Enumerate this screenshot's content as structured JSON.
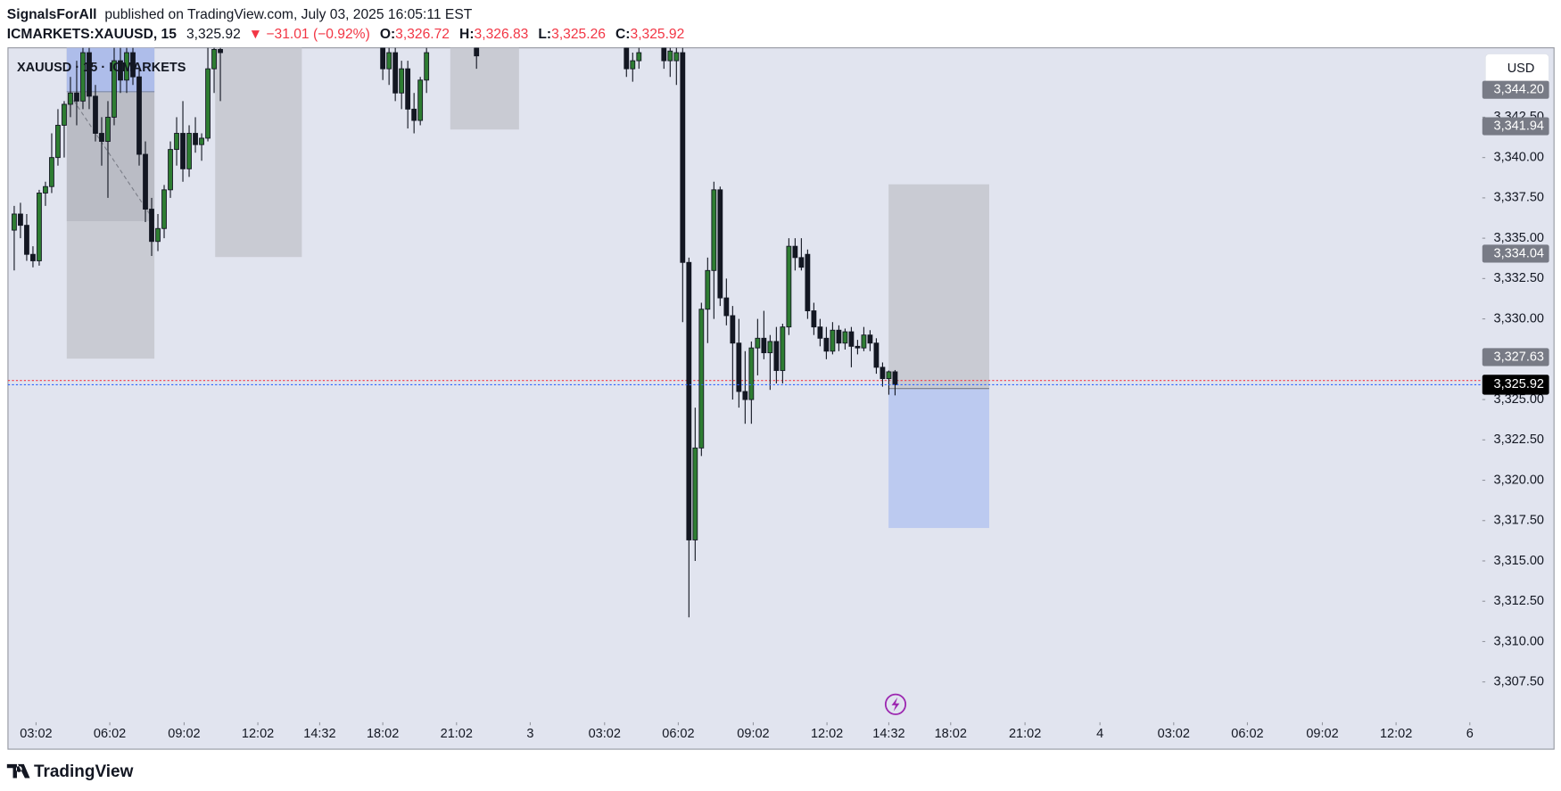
{
  "header": {
    "author": "SignalsForAll",
    "published": "published on TradingView.com, July 03, 2025 16:05:11 EST",
    "symbol": "ICMARKETS:XAUUSD, 15",
    "price": "3,325.92",
    "change": "▼ −31.01 (−0.92%)",
    "ohlc": [
      {
        "label": "O:",
        "value": "3,326.72"
      },
      {
        "label": "H:",
        "value": "3,326.83"
      },
      {
        "label": "L:",
        "value": "3,325.26"
      },
      {
        "label": "C:",
        "value": "3,325.92"
      }
    ]
  },
  "chart_data": {
    "type": "candlestick",
    "legend": "XAUUSD · 15 · ICMARKETS",
    "currency": "USD",
    "up_color": "#2e7d32",
    "down_color": "#131722",
    "grid": false,
    "x": [
      1,
      2,
      3,
      4,
      5,
      6,
      7,
      8,
      9,
      10,
      11,
      12,
      13,
      14,
      15,
      16,
      17,
      18,
      19,
      20,
      21,
      22,
      23,
      24,
      25,
      26,
      27,
      28,
      29,
      30,
      31,
      32,
      33,
      34,
      60,
      61,
      62,
      63,
      64,
      65,
      66,
      67,
      75,
      99,
      100,
      101,
      105,
      106,
      107,
      108,
      109,
      110,
      111,
      112,
      113,
      114,
      115,
      116,
      117,
      118,
      119,
      120,
      121,
      122,
      123,
      124,
      125,
      126,
      127,
      128,
      129,
      130,
      131,
      132,
      133,
      134,
      135,
      136,
      137,
      138,
      139,
      140,
      141,
      142
    ],
    "open": [
      3335.5,
      3336.5,
      3335.8,
      3334,
      3333.6,
      3337.8,
      3338.2,
      3340,
      3342,
      3343.3,
      3344,
      3343.5,
      3346.5,
      3343.8,
      3341.5,
      3341,
      3342.5,
      3346,
      3344.8,
      3346.5,
      3345,
      3340.2,
      3336.8,
      3334.8,
      3335.6,
      3338,
      3340.5,
      3341.5,
      3339.3,
      3341.5,
      3340.8,
      3341.2,
      3345.5,
      3346.7,
      3346.8,
      3345.5,
      3346.5,
      3344,
      3345.5,
      3343,
      3342.3,
      3344.8,
      3346.8,
      3346.8,
      3345.5,
      3346,
      3346.8,
      3346,
      3346,
      3346.5,
      3333.5,
      3316.3,
      3322,
      3330.6,
      3333,
      3338,
      3331.3,
      3330.2,
      3328.5,
      3325.5,
      3325,
      3328.2,
      3328.8,
      3327.9,
      3328.6,
      3326.8,
      3329.5,
      3334.5,
      3333.8,
      3334,
      3330.5,
      3329.5,
      3328.8,
      3328,
      3329.3,
      3328.5,
      3329.2,
      3328.3,
      3328.2,
      3329,
      3328.5,
      3327,
      3326.3,
      3326.72
    ],
    "high": [
      3337,
      3337.2,
      3336.5,
      3334.5,
      3338,
      3338.5,
      3341.5,
      3343,
      3343.5,
      3345,
      3346,
      3346.8,
      3346.8,
      3344.5,
      3342.5,
      3343.5,
      3346.8,
      3346.8,
      3346.8,
      3346.8,
      3345.5,
      3341,
      3337.5,
      3336.5,
      3338.3,
      3341,
      3342.5,
      3343.5,
      3342,
      3342.5,
      3341.5,
      3346.8,
      3346.8,
      3346.8,
      3346.8,
      3346.8,
      3346.8,
      3346,
      3346,
      3344,
      3345,
      3346.8,
      3346.8,
      3346.8,
      3346.5,
      3346.8,
      3346.8,
      3346.8,
      3346.8,
      3346.8,
      3333.8,
      3324.5,
      3331,
      3333.8,
      3338.5,
      3338.2,
      3332.5,
      3330.8,
      3330,
      3328,
      3328.6,
      3330,
      3330.5,
      3329,
      3329.5,
      3329.7,
      3335,
      3335,
      3335,
      3334.3,
      3331,
      3330,
      3329.5,
      3329.8,
      3329.6,
      3329.4,
      3329.5,
      3328.7,
      3329.5,
      3329.3,
      3328.8,
      3327.3,
      3326.8,
      3326.83
    ],
    "low": [
      3333,
      3335,
      3333.6,
      3333.2,
      3333.3,
      3337,
      3337.8,
      3339.5,
      3340,
      3342.5,
      3342,
      3343,
      3343,
      3341,
      3339.5,
      3337.5,
      3342,
      3344,
      3344,
      3344.5,
      3339.5,
      3336,
      3333.9,
      3334.2,
      3335,
      3337.5,
      3339.5,
      3338.5,
      3338.8,
      3340.3,
      3339.8,
      3341,
      3344,
      3343.5,
      3344.8,
      3344.5,
      3343.5,
      3343,
      3341.8,
      3341.5,
      3342,
      3344,
      3345.5,
      3345,
      3344.7,
      3345.5,
      3345.5,
      3345,
      3344.5,
      3329.8,
      3311.5,
      3315,
      3321.5,
      3328.5,
      3330,
      3330.8,
      3329.6,
      3325,
      3324.5,
      3323.5,
      3323.5,
      3326.5,
      3327.5,
      3325.6,
      3326,
      3326,
      3329,
      3333,
      3333,
      3330,
      3329,
      3328.3,
      3327.5,
      3327.8,
      3328,
      3328.1,
      3327,
      3327.8,
      3328,
      3328,
      3326.6,
      3325.8,
      3325.3,
      3325.26
    ],
    "close": [
      3336.5,
      3335.8,
      3334,
      3333.6,
      3337.8,
      3338.2,
      3340,
      3342,
      3343.3,
      3344,
      3343.5,
      3346.5,
      3343.8,
      3341.5,
      3341,
      3342.5,
      3346,
      3344.8,
      3346.5,
      3345,
      3340.2,
      3336.8,
      3334.8,
      3335.6,
      3338,
      3340.5,
      3341.5,
      3339.3,
      3341.5,
      3340.8,
      3341.2,
      3345.5,
      3346.7,
      3346.5,
      3345.5,
      3346.5,
      3344,
      3345.5,
      3343,
      3342.3,
      3344.8,
      3346.5,
      3346.3,
      3345.5,
      3346,
      3346.5,
      3346,
      3346.6,
      3346.5,
      3333.5,
      3316.3,
      3322,
      3330.6,
      3333,
      3338,
      3331.3,
      3330.2,
      3328.5,
      3325.5,
      3325,
      3328.2,
      3328.8,
      3327.9,
      3328.6,
      3326.8,
      3329.5,
      3334.5,
      3333.8,
      3333.2,
      3330.5,
      3329.5,
      3328.8,
      3328,
      3329.3,
      3328.5,
      3329.2,
      3328.3,
      3328.2,
      3329,
      3328.5,
      3327,
      3326.3,
      3326.72,
      3325.92
    ],
    "xlim": [
      0,
      236
    ],
    "ylim": [
      3305.0,
      3346.8
    ],
    "xticks": [
      {
        "value": 4.5,
        "label": "03:02"
      },
      {
        "value": 16.3,
        "label": "06:02"
      },
      {
        "value": 28.2,
        "label": "09:02"
      },
      {
        "value": 40,
        "label": "12:02"
      },
      {
        "value": 49.9,
        "label": "14:32"
      },
      {
        "value": 60,
        "label": "18:02"
      },
      {
        "value": 71.8,
        "label": "21:02"
      },
      {
        "value": 83.6,
        "label": "3"
      },
      {
        "value": 95.5,
        "label": "03:02"
      },
      {
        "value": 107.3,
        "label": "06:02"
      },
      {
        "value": 119.3,
        "label": "09:02"
      },
      {
        "value": 131.1,
        "label": "12:02"
      },
      {
        "value": 141,
        "label": "14:32"
      },
      {
        "value": 150.9,
        "label": "18:02"
      },
      {
        "value": 162.8,
        "label": "21:02"
      },
      {
        "value": 174.8,
        "label": "4"
      },
      {
        "value": 186.6,
        "label": "03:02"
      },
      {
        "value": 198.4,
        "label": "06:02"
      },
      {
        "value": 210.4,
        "label": "09:02"
      },
      {
        "value": 222.2,
        "label": "12:02"
      },
      {
        "value": 234,
        "label": "6"
      }
    ],
    "yticks": [
      {
        "value": 3307.5,
        "label": "3,307.50"
      },
      {
        "value": 3310,
        "label": "3,310.00"
      },
      {
        "value": 3312.5,
        "label": "3,312.50"
      },
      {
        "value": 3315,
        "label": "3,315.00"
      },
      {
        "value": 3317.5,
        "label": "3,317.50"
      },
      {
        "value": 3320,
        "label": "3,320.00"
      },
      {
        "value": 3322.5,
        "label": "3,322.50"
      },
      {
        "value": 3325,
        "label": "3,325.00"
      },
      {
        "value": 3327.5,
        "label": "3,327.50"
      },
      {
        "value": 3330,
        "label": "3,330.00"
      },
      {
        "value": 3332.5,
        "label": "3,332.50"
      },
      {
        "value": 3335,
        "label": "3,335.00"
      },
      {
        "value": 3337.5,
        "label": "3,337.50"
      },
      {
        "value": 3340,
        "label": "3,340.00"
      },
      {
        "value": 3342.5,
        "label": "3,342.50"
      }
    ],
    "price_labels": [
      {
        "value": 3344.2,
        "label": "3,344.20"
      },
      {
        "value": 3341.94,
        "label": "3,341.94"
      },
      {
        "value": 3334.04,
        "label": "3,334.04"
      },
      {
        "value": 3327.63,
        "label": "3,327.63"
      }
    ],
    "last_price": {
      "value": 3325.92,
      "label": "3,325.92"
    }
  },
  "footer": {
    "brand": "TradingView"
  }
}
